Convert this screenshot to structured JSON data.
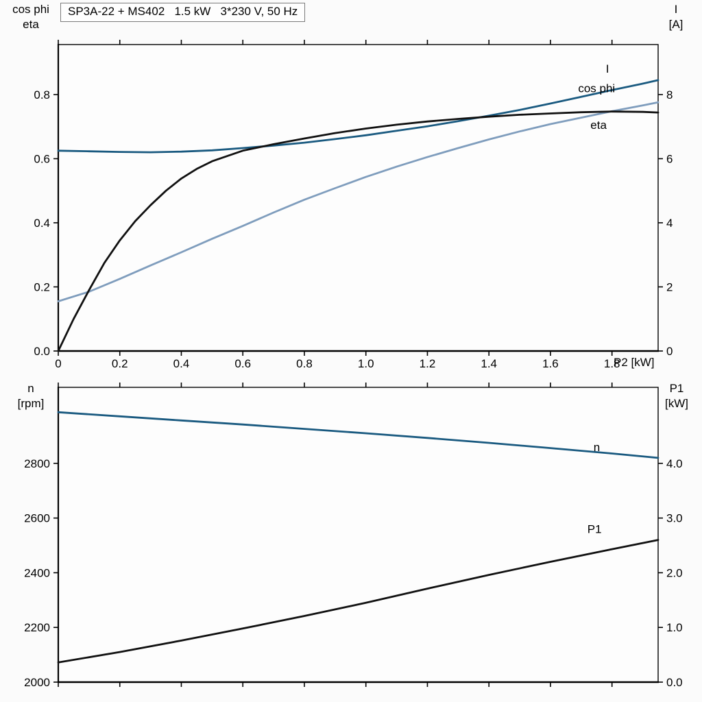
{
  "title_box": {
    "text": "SP3A-22 + MS402   1.5 kW   3*230 V, 50 Hz"
  },
  "colors": {
    "curve_dark_blue": "#1a5a80",
    "curve_light_blue": "#7f9dbd",
    "curve_black": "#111111",
    "axis": "#000000",
    "plot_background": "#fdfdfd"
  },
  "chart_data": [
    {
      "id": "top",
      "type": "line",
      "xlabel": "P2 [kW]",
      "xlim": [
        0,
        1.95
      ],
      "x_ticks": [
        0,
        0.2,
        0.4,
        0.6,
        0.8,
        1.0,
        1.2,
        1.4,
        1.6,
        1.8
      ],
      "x_tick_labels": [
        "0",
        "0.2",
        "0.4",
        "0.6",
        "0.8",
        "1.0",
        "1.2",
        "1.4",
        "1.6",
        "1.8"
      ],
      "grid": false,
      "left_axis": {
        "title_lines": [
          "cos phi",
          "eta"
        ],
        "lim": [
          0,
          0.956
        ],
        "ticks": [
          0.0,
          0.2,
          0.4,
          0.6,
          0.8
        ],
        "tick_labels": [
          "0.0",
          "0.2",
          "0.4",
          "0.6",
          "0.8"
        ]
      },
      "right_axis": {
        "title_lines": [
          "I",
          "[A]"
        ],
        "lim": [
          0,
          9.56
        ],
        "ticks": [
          0,
          2,
          4,
          6,
          8
        ],
        "tick_labels": [
          "0",
          "2",
          "4",
          "6",
          "8"
        ]
      },
      "series": [
        {
          "name": "I",
          "label": "I",
          "axis": "right",
          "color_key": "curve_dark_blue",
          "label_at": [
            1.78,
            8.78
          ],
          "points": [
            [
              0,
              6.25
            ],
            [
              0.1,
              6.23
            ],
            [
              0.2,
              6.21
            ],
            [
              0.3,
              6.2
            ],
            [
              0.4,
              6.22
            ],
            [
              0.5,
              6.26
            ],
            [
              0.6,
              6.33
            ],
            [
              0.7,
              6.41
            ],
            [
              0.8,
              6.5
            ],
            [
              0.9,
              6.61
            ],
            [
              1.0,
              6.73
            ],
            [
              1.1,
              6.87
            ],
            [
              1.2,
              7.01
            ],
            [
              1.3,
              7.17
            ],
            [
              1.4,
              7.34
            ],
            [
              1.5,
              7.52
            ],
            [
              1.6,
              7.72
            ],
            [
              1.7,
              7.93
            ],
            [
              1.8,
              8.14
            ],
            [
              1.9,
              8.34
            ],
            [
              1.95,
              8.45
            ]
          ]
        },
        {
          "name": "cos phi",
          "label": "cos phi",
          "axis": "left",
          "color_key": "curve_light_blue",
          "label_at": [
            1.69,
            0.817
          ],
          "points": [
            [
              0,
              0.155
            ],
            [
              0.1,
              0.185
            ],
            [
              0.2,
              0.225
            ],
            [
              0.3,
              0.267
            ],
            [
              0.4,
              0.308
            ],
            [
              0.5,
              0.35
            ],
            [
              0.6,
              0.39
            ],
            [
              0.7,
              0.432
            ],
            [
              0.8,
              0.472
            ],
            [
              0.9,
              0.508
            ],
            [
              1.0,
              0.543
            ],
            [
              1.1,
              0.575
            ],
            [
              1.2,
              0.605
            ],
            [
              1.3,
              0.633
            ],
            [
              1.4,
              0.66
            ],
            [
              1.5,
              0.685
            ],
            [
              1.6,
              0.708
            ],
            [
              1.7,
              0.728
            ],
            [
              1.8,
              0.748
            ],
            [
              1.9,
              0.766
            ],
            [
              1.95,
              0.776
            ]
          ]
        },
        {
          "name": "eta",
          "label": "eta",
          "axis": "left",
          "color_key": "curve_black",
          "label_at": [
            1.73,
            0.703
          ],
          "points": [
            [
              0,
              0.0
            ],
            [
              0.05,
              0.1
            ],
            [
              0.1,
              0.19
            ],
            [
              0.15,
              0.275
            ],
            [
              0.2,
              0.345
            ],
            [
              0.25,
              0.405
            ],
            [
              0.3,
              0.455
            ],
            [
              0.35,
              0.5
            ],
            [
              0.4,
              0.538
            ],
            [
              0.45,
              0.568
            ],
            [
              0.5,
              0.592
            ],
            [
              0.6,
              0.625
            ],
            [
              0.7,
              0.645
            ],
            [
              0.8,
              0.663
            ],
            [
              0.9,
              0.68
            ],
            [
              1.0,
              0.694
            ],
            [
              1.1,
              0.706
            ],
            [
              1.2,
              0.716
            ],
            [
              1.3,
              0.724
            ],
            [
              1.4,
              0.731
            ],
            [
              1.5,
              0.737
            ],
            [
              1.6,
              0.741
            ],
            [
              1.7,
              0.745
            ],
            [
              1.8,
              0.747
            ],
            [
              1.9,
              0.746
            ],
            [
              1.95,
              0.744
            ]
          ]
        }
      ]
    },
    {
      "id": "bottom",
      "type": "line",
      "xlabel": "",
      "xlim": [
        0,
        1.95
      ],
      "x_ticks": [
        0,
        0.2,
        0.4,
        0.6,
        0.8,
        1.0,
        1.2,
        1.4,
        1.6,
        1.8
      ],
      "x_tick_labels": [],
      "grid": false,
      "left_axis": {
        "title_lines": [
          "n",
          "[rpm]"
        ],
        "lim": [
          2000,
          3078
        ],
        "ticks": [
          2000,
          2200,
          2400,
          2600,
          2800
        ],
        "tick_labels": [
          "2000",
          "2200",
          "2400",
          "2600",
          "2800"
        ]
      },
      "right_axis": {
        "title_lines": [
          "P1",
          "[kW]"
        ],
        "lim": [
          0,
          5.39
        ],
        "ticks": [
          0.0,
          1.0,
          2.0,
          3.0,
          4.0
        ],
        "tick_labels": [
          "0.0",
          "1.0",
          "2.0",
          "3.0",
          "4.0"
        ]
      },
      "series": [
        {
          "name": "n",
          "label": "n",
          "axis": "left",
          "color_key": "curve_dark_blue",
          "label_at": [
            1.74,
            2856
          ],
          "points": [
            [
              0,
              2987
            ],
            [
              0.2,
              2972
            ],
            [
              0.4,
              2957
            ],
            [
              0.6,
              2942
            ],
            [
              0.8,
              2926
            ],
            [
              1.0,
              2910
            ],
            [
              1.2,
              2893
            ],
            [
              1.4,
              2875
            ],
            [
              1.6,
              2856
            ],
            [
              1.8,
              2836
            ],
            [
              1.95,
              2820
            ]
          ]
        },
        {
          "name": "P1",
          "label": "P1",
          "axis": "right",
          "color_key": "curve_black",
          "label_at": [
            1.72,
            2.78
          ],
          "points": [
            [
              0,
              0.36
            ],
            [
              0.2,
              0.55
            ],
            [
              0.4,
              0.76
            ],
            [
              0.6,
              0.98
            ],
            [
              0.8,
              1.21
            ],
            [
              1.0,
              1.45
            ],
            [
              1.2,
              1.71
            ],
            [
              1.4,
              1.96
            ],
            [
              1.6,
              2.2
            ],
            [
              1.8,
              2.43
            ],
            [
              1.95,
              2.6
            ]
          ]
        }
      ]
    }
  ]
}
